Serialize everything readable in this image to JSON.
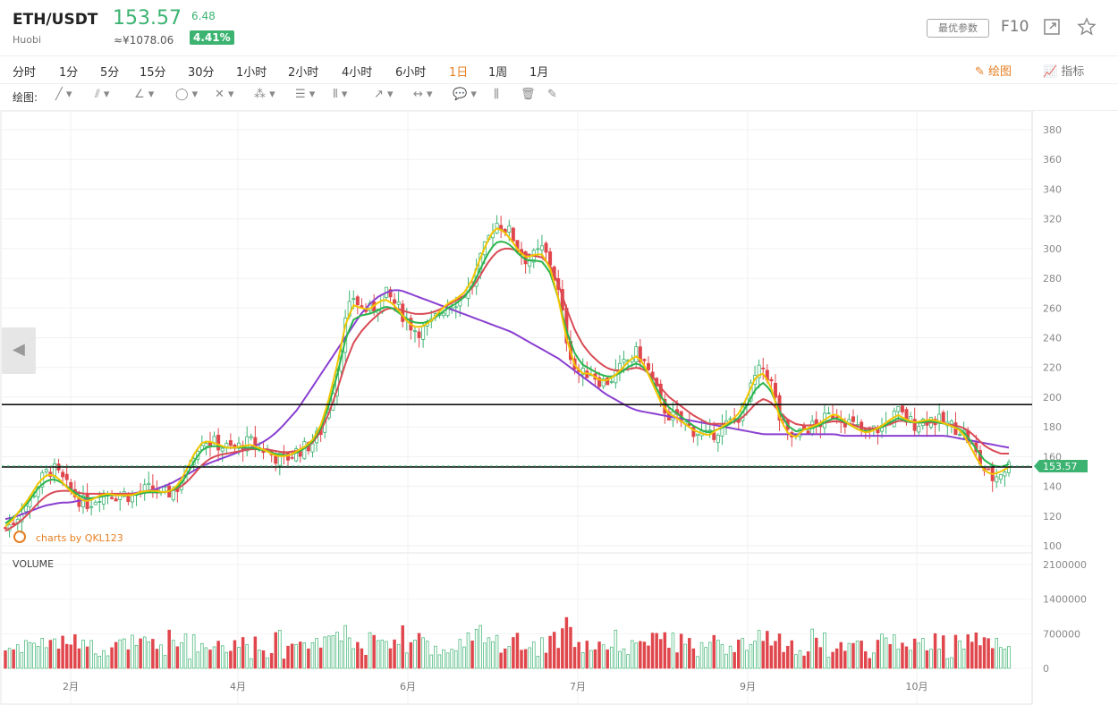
{
  "header": {
    "symbol": "ETH/USDT",
    "exchange": "Huobi",
    "price": "153.57",
    "cny_price": "≈¥1078.06",
    "change": "6.48",
    "change_pct": "4.41%",
    "param_button": "最优参数",
    "f10": "F10"
  },
  "timeframes": [
    "分时",
    "1分",
    "5分",
    "15分",
    "30分",
    "1小时",
    "2小时",
    "4小时",
    "6小时",
    "1日",
    "1周",
    "1月"
  ],
  "active_timeframe": "1日",
  "toolbar": {
    "draw": "绘图",
    "indicators": "指标",
    "draw_label": "绘图:"
  },
  "watermark": "charts by QKL123",
  "volume_label": "VOLUME",
  "colors": {
    "up": "#3cb371",
    "down": "#e0474c",
    "ma5": "#f2c500",
    "ma10": "#2bb54d",
    "ma20": "#d94b55",
    "ma60": "#8a3fd0",
    "accent": "#e67e22"
  },
  "chart_data": {
    "type": "candlestick",
    "instrument": "ETH/USDT",
    "interval": "1日",
    "y_ticks": [
      100,
      120,
      140,
      160,
      180,
      200,
      220,
      240,
      260,
      280,
      300,
      320,
      340,
      360,
      380
    ],
    "ylim": [
      100,
      380
    ],
    "x_labels": [
      "2月",
      "4月",
      "6月",
      "7月",
      "9月",
      "10月"
    ],
    "last_price": 153.57,
    "horizontal_lines": [
      195,
      153
    ],
    "volume_ticks": [
      "0",
      "700000",
      "1400000",
      "2100000"
    ],
    "volume_max": 2100000,
    "close_path": [
      112,
      116,
      124,
      130,
      140,
      148,
      152,
      146,
      138,
      133,
      128,
      130,
      135,
      136,
      134,
      135,
      133,
      136,
      138,
      137,
      135,
      136,
      140,
      152,
      165,
      172,
      170,
      168,
      166,
      165,
      168,
      170,
      166,
      164,
      160,
      158,
      160,
      164,
      166,
      170,
      178,
      195,
      220,
      250,
      268,
      260,
      258,
      262,
      270,
      265,
      258,
      250,
      245,
      245,
      250,
      258,
      262,
      265,
      270,
      275,
      290,
      305,
      318,
      315,
      310,
      300,
      292,
      295,
      300,
      290,
      270,
      240,
      220,
      215,
      218,
      212,
      210,
      214,
      220,
      226,
      230,
      222,
      210,
      195,
      188,
      185,
      182,
      178,
      176,
      172,
      178,
      180,
      184,
      188,
      200,
      215,
      220,
      208,
      185,
      175,
      172,
      178,
      180,
      182,
      186,
      190,
      186,
      182,
      178,
      175,
      178,
      180,
      185,
      190,
      185,
      182,
      184,
      186,
      184,
      182,
      180,
      178,
      170,
      160,
      150,
      145,
      150,
      154
    ],
    "ma5_path": [
      113,
      118,
      125,
      132,
      141,
      147,
      148,
      144,
      138,
      133,
      130,
      131,
      134,
      135,
      134,
      134,
      134,
      136,
      137,
      137,
      136,
      137,
      142,
      152,
      163,
      170,
      170,
      168,
      166,
      166,
      167,
      168,
      166,
      164,
      161,
      160,
      161,
      164,
      167,
      172,
      182,
      200,
      222,
      248,
      262,
      260,
      259,
      263,
      266,
      263,
      257,
      250,
      247,
      248,
      252,
      258,
      263,
      266,
      270,
      278,
      292,
      305,
      314,
      312,
      306,
      298,
      294,
      296,
      296,
      286,
      266,
      240,
      222,
      216,
      216,
      212,
      211,
      214,
      219,
      225,
      228,
      220,
      208,
      196,
      189,
      186,
      182,
      178,
      176,
      174,
      178,
      181,
      185,
      190,
      202,
      214,
      216,
      205,
      186,
      176,
      173,
      178,
      180,
      182,
      186,
      189,
      185,
      181,
      178,
      176,
      178,
      181,
      185,
      188,
      185,
      183,
      184,
      185,
      184,
      182,
      180,
      177,
      168,
      158,
      150,
      148,
      150,
      153
    ],
    "ma10_path": [
      115,
      119,
      124,
      130,
      138,
      143,
      145,
      143,
      139,
      135,
      132,
      132,
      133,
      134,
      134,
      134,
      134,
      135,
      136,
      136,
      136,
      137,
      140,
      148,
      158,
      165,
      167,
      167,
      166,
      166,
      166,
      166,
      165,
      164,
      162,
      161,
      161,
      163,
      166,
      171,
      180,
      196,
      215,
      238,
      252,
      255,
      256,
      258,
      261,
      260,
      256,
      252,
      250,
      250,
      252,
      256,
      260,
      263,
      267,
      274,
      285,
      296,
      304,
      305,
      302,
      296,
      292,
      292,
      291,
      283,
      266,
      245,
      230,
      222,
      219,
      216,
      214,
      214,
      217,
      221,
      223,
      219,
      210,
      200,
      193,
      189,
      185,
      181,
      178,
      176,
      178,
      180,
      183,
      187,
      196,
      206,
      210,
      203,
      190,
      181,
      177,
      178,
      179,
      181,
      184,
      186,
      184,
      181,
      178,
      177,
      178,
      180,
      183,
      186,
      184,
      183,
      183,
      184,
      183,
      182,
      180,
      178,
      172,
      164,
      157,
      154,
      153,
      155
    ],
    "ma20_path": [
      110,
      113,
      117,
      122,
      128,
      133,
      136,
      137,
      137,
      136,
      135,
      135,
      135,
      135,
      135,
      135,
      135,
      135,
      136,
      136,
      136,
      137,
      139,
      143,
      149,
      155,
      159,
      161,
      162,
      163,
      164,
      165,
      165,
      165,
      164,
      163,
      163,
      164,
      166,
      170,
      178,
      190,
      205,
      222,
      236,
      244,
      250,
      255,
      259,
      260,
      259,
      257,
      256,
      256,
      257,
      259,
      262,
      265,
      268,
      273,
      281,
      290,
      297,
      300,
      300,
      298,
      296,
      295,
      294,
      288,
      276,
      260,
      246,
      236,
      229,
      224,
      220,
      218,
      218,
      219,
      220,
      218,
      213,
      206,
      200,
      196,
      192,
      188,
      185,
      182,
      182,
      182,
      183,
      185,
      190,
      196,
      199,
      196,
      190,
      185,
      182,
      181,
      181,
      182,
      183,
      184,
      183,
      182,
      180,
      179,
      179,
      180,
      182,
      184,
      184,
      183,
      183,
      183,
      183,
      182,
      181,
      180,
      177,
      172,
      167,
      164,
      162,
      162
    ],
    "ma60_path": [
      118,
      119,
      121,
      123,
      125,
      127,
      128,
      129,
      129,
      130,
      131,
      132,
      133,
      134,
      134,
      135,
      135,
      136,
      137,
      138,
      140,
      142,
      145,
      148,
      151,
      154,
      156,
      158,
      160,
      162,
      164,
      166,
      168,
      171,
      175,
      180,
      186,
      192,
      200,
      208,
      216,
      224,
      232,
      240,
      248,
      256,
      262,
      267,
      270,
      272,
      272,
      270,
      268,
      266,
      264,
      262,
      260,
      258,
      256,
      254,
      252,
      250,
      248,
      246,
      244,
      241,
      238,
      235,
      232,
      229,
      226,
      222,
      218,
      214,
      210,
      206,
      202,
      199,
      196,
      193,
      191,
      190,
      189,
      188,
      187,
      186,
      185,
      184,
      183,
      182,
      181,
      180,
      179,
      178,
      177,
      176,
      175,
      175,
      175,
      175,
      175,
      175,
      175,
      175,
      175,
      175,
      174,
      174,
      174,
      174,
      174,
      174,
      174,
      174,
      174,
      174,
      174,
      174,
      174,
      174,
      173,
      172,
      171,
      170,
      169,
      168,
      167,
      166
    ]
  }
}
